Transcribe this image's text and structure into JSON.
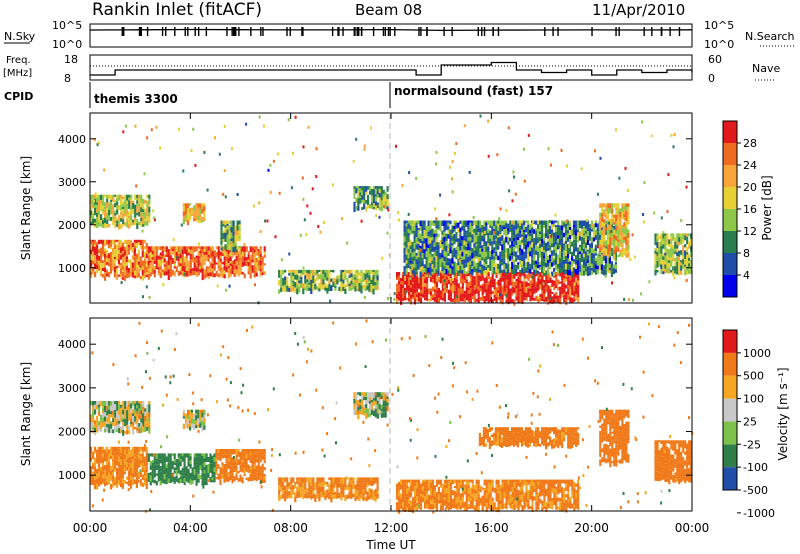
{
  "header": {
    "station": "Rankin Inlet (fitACF)",
    "beam": "Beam 08",
    "date": "11/Apr/2010"
  },
  "strip_labels": {
    "nsky": "N.Sky",
    "nsky_ticks": [
      "10^5",
      "10^0"
    ],
    "nsearch": "N.Search",
    "nsearch_ticks": [
      "10^5",
      "10^0"
    ],
    "freq": "Freq.",
    "freq_unit": "[MHz]",
    "freq_ticks": [
      "18",
      "8"
    ],
    "nave": "Nave",
    "nave_ticks": [
      "60",
      "0"
    ],
    "cpid": "CPID",
    "modes": [
      "themis 3300",
      "normalsound (fast) 157"
    ]
  },
  "colors": {
    "power_scale": [
      "#0000ee",
      "#1f4fa8",
      "#2a7d4f",
      "#8ec84a",
      "#e6d033",
      "#f7a43a",
      "#f06b22",
      "#e31a1c"
    ],
    "velocity_scale": [
      "#1f4fa8",
      "#2f7f4a",
      "#7cc24a",
      "#c8c8c8",
      "#f5a623",
      "#f07a1a",
      "#e31a1c"
    ]
  },
  "chart_data": [
    {
      "type": "line",
      "panel": "N.Sky / N.Search",
      "x": [
        "00:00",
        "02:00",
        "04:00",
        "06:00",
        "08:00",
        "10:00",
        "12:00",
        "14:00",
        "16:00",
        "18:00",
        "20:00",
        "22:00",
        "24:00"
      ],
      "series": [
        {
          "values": [
            100000,
            120000,
            150000,
            130000,
            110000,
            110000,
            140000,
            70000,
            90000,
            100000,
            110000,
            100000,
            120000
          ]
        }
      ],
      "yscale": "log",
      "ylim": [
        1,
        100000
      ]
    },
    {
      "type": "line",
      "panel": "Freq. / Nave",
      "x": [
        "00:00",
        "01:00",
        "12:00",
        "13:00",
        "14:00",
        "16:00",
        "17:00",
        "18:00",
        "19:00",
        "20:00",
        "21:00",
        "22:00",
        "23:00",
        "24:00"
      ],
      "series": [
        {
          "values": [
            10,
            12,
            12,
            10,
            14,
            15,
            12,
            11,
            12,
            10,
            12,
            11,
            12,
            11
          ]
        }
      ],
      "ylim": [
        8,
        18
      ]
    },
    {
      "type": "heatmap",
      "panel": "Power",
      "xlabel": "Time UT",
      "ylabel": "Slant Range [km]",
      "x_ticks": [
        "00:00",
        "04:00",
        "08:00",
        "12:00",
        "16:00",
        "20:00",
        "00:00"
      ],
      "y_ticks": [
        "1000",
        "2000",
        "3000",
        "4000"
      ],
      "xlim": [
        0,
        24
      ],
      "ylim": [
        180,
        4600
      ],
      "colorbar": {
        "label": "Power [dB]",
        "ticks": [
          "28",
          "24",
          "20",
          "16",
          "12",
          "8",
          "4"
        ]
      },
      "regions": [
        {
          "t0": 0.0,
          "t1": 2.4,
          "r0": 2000,
          "r1": 2700,
          "value": 14
        },
        {
          "t0": 0.0,
          "t1": 2.3,
          "r0": 800,
          "r1": 1650,
          "value": 22
        },
        {
          "t0": 2.3,
          "t1": 7.0,
          "r0": 850,
          "r1": 1500,
          "value": 24
        },
        {
          "t0": 3.7,
          "t1": 4.6,
          "r0": 2100,
          "r1": 2500,
          "value": 18
        },
        {
          "t0": 5.2,
          "t1": 6.0,
          "r0": 1450,
          "r1": 2100,
          "value": 12
        },
        {
          "t0": 7.5,
          "t1": 11.5,
          "r0": 500,
          "r1": 950,
          "value": 12
        },
        {
          "t0": 10.5,
          "t1": 11.9,
          "r0": 2400,
          "r1": 2900,
          "value": 10
        },
        {
          "t0": 12.2,
          "t1": 19.5,
          "r0": 250,
          "r1": 900,
          "value": 28
        },
        {
          "t0": 12.5,
          "t1": 21.0,
          "r0": 900,
          "r1": 2100,
          "value": 8
        },
        {
          "t0": 20.3,
          "t1": 21.5,
          "r0": 1300,
          "r1": 2500,
          "value": 18
        },
        {
          "t0": 22.5,
          "t1": 24.0,
          "r0": 900,
          "r1": 1800,
          "value": 12
        }
      ]
    },
    {
      "type": "heatmap",
      "panel": "Velocity",
      "xlabel": "Time UT",
      "ylabel": "Slant Range [km]",
      "x_ticks": [
        "00:00",
        "04:00",
        "08:00",
        "12:00",
        "16:00",
        "20:00",
        "00:00"
      ],
      "y_ticks": [
        "1000",
        "2000",
        "3000",
        "4000"
      ],
      "xlim": [
        0,
        24
      ],
      "ylim": [
        180,
        4600
      ],
      "colorbar": {
        "label": "Velocity [m s⁻¹]",
        "ticks": [
          "1000",
          "500",
          "100",
          "25",
          "-25",
          "-100",
          "-500",
          "-1000"
        ]
      },
      "regions": [
        {
          "t0": 0.0,
          "t1": 2.4,
          "r0": 2000,
          "r1": 2700,
          "value": 0
        },
        {
          "t0": 0.0,
          "t1": 2.3,
          "r0": 800,
          "r1": 1650,
          "value": -150
        },
        {
          "t0": 2.3,
          "t1": 5.0,
          "r0": 850,
          "r1": 1500,
          "value": 150
        },
        {
          "t0": 3.7,
          "t1": 4.6,
          "r0": 2100,
          "r1": 2500,
          "value": 0
        },
        {
          "t0": 5.0,
          "t1": 7.0,
          "r0": 900,
          "r1": 1600,
          "value": -200
        },
        {
          "t0": 7.5,
          "t1": 11.5,
          "r0": 500,
          "r1": 950,
          "value": -150
        },
        {
          "t0": 10.5,
          "t1": 11.9,
          "r0": 2400,
          "r1": 2900,
          "value": 0
        },
        {
          "t0": 12.2,
          "t1": 19.5,
          "r0": 250,
          "r1": 900,
          "value": -150
        },
        {
          "t0": 15.5,
          "t1": 19.5,
          "r0": 1700,
          "r1": 2100,
          "value": -200
        },
        {
          "t0": 20.3,
          "t1": 21.5,
          "r0": 1300,
          "r1": 2500,
          "value": -300
        },
        {
          "t0": 22.5,
          "t1": 24.0,
          "r0": 900,
          "r1": 1800,
          "value": -250
        }
      ]
    }
  ],
  "axis_labels": {
    "time": "Time UT",
    "range": "Slant Range [km]",
    "power": "Power [dB]",
    "velocity": "Velocity [m s⁻¹]"
  }
}
